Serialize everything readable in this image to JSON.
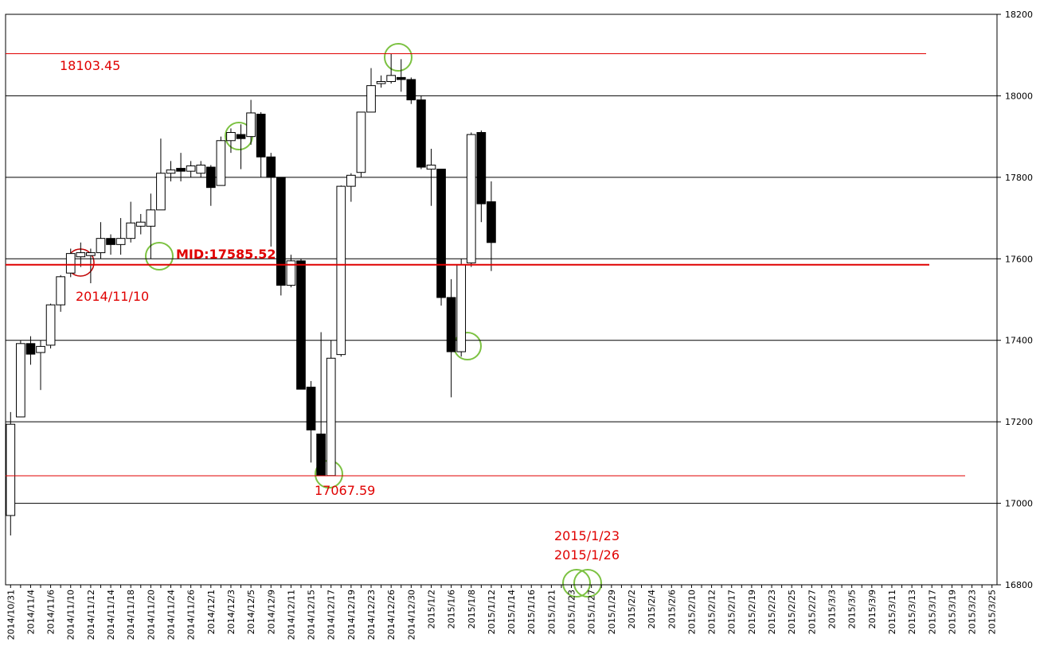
{
  "chart_data": {
    "type": "candlestick",
    "categories": [
      "2014/10/31",
      null,
      "2014/11/4",
      null,
      "2014/11/6",
      null,
      "2014/11/10",
      null,
      "2014/11/12",
      null,
      "2014/11/14",
      null,
      "2014/11/18",
      null,
      "2014/11/20",
      null,
      "2014/11/24",
      null,
      "2014/11/26",
      null,
      "2014/12/1",
      null,
      "2014/12/3",
      null,
      "2014/12/5",
      null,
      "2014/12/9",
      null,
      "2014/12/11",
      null,
      "2014/12/15",
      null,
      "2014/12/17",
      null,
      "2014/12/19",
      null,
      "2014/12/23",
      null,
      "2014/12/26",
      null,
      "2014/12/30",
      null,
      "2015/1/2",
      null,
      "2015/1/6",
      null,
      "2015/1/8",
      null,
      "2015/1/12",
      null,
      "2015/1/14",
      null,
      "2015/1/16",
      null,
      "2015/1/21",
      null,
      "2015/1/23",
      null,
      "2015/1/27",
      null,
      "2015/1/29",
      null,
      "2015/2/2",
      null,
      "2015/2/4",
      null,
      "2015/2/6",
      null,
      "2015/2/10",
      null,
      "2015/2/12",
      null,
      "2015/2/17",
      null,
      "2015/2/19",
      null,
      "2015/2/23",
      null,
      "2015/2/25",
      null,
      "2015/2/27",
      null,
      "2015/3/3",
      null,
      "2015/3/5",
      null,
      "2015/3/9",
      null,
      "2015/3/11",
      null,
      "2015/3/13",
      null,
      "2015/3/17",
      null,
      "2015/3/19",
      null,
      "2015/3/23",
      null,
      "2015/3/25"
    ],
    "open": [
      16970,
      17212,
      17392,
      17370,
      17388,
      17487,
      17565,
      17605,
      17608,
      17615,
      17650,
      17635,
      17650,
      17680,
      17680,
      17720,
      17810,
      17822,
      17815,
      17810,
      17825,
      17780,
      17890,
      17905,
      17900,
      17955,
      17850,
      17800,
      17535,
      17595,
      17285,
      17170,
      17068,
      17365,
      17778,
      17812,
      17960,
      18030,
      18035,
      18045,
      18040,
      17990,
      17820,
      17820,
      17505,
      17372,
      17590,
      17910,
      17740,
      null,
      null,
      null,
      null,
      null,
      null,
      null,
      null,
      null,
      null,
      null,
      null,
      null,
      null,
      null,
      null,
      null,
      null,
      null,
      null,
      null,
      null,
      null,
      null,
      null,
      null,
      null,
      null,
      null,
      null,
      null,
      null,
      null,
      null,
      null,
      null,
      null,
      null,
      null,
      null,
      null,
      null,
      null,
      null,
      null,
      null,
      null,
      null,
      null,
      null
    ],
    "high": [
      17224,
      17400,
      17410,
      17400,
      17490,
      17560,
      17625,
      17640,
      17625,
      17690,
      17660,
      17700,
      17740,
      17710,
      17760,
      17895,
      17840,
      17860,
      17840,
      17840,
      17830,
      17900,
      17920,
      17930,
      17990,
      17960,
      17860,
      17800,
      17610,
      17600,
      17300,
      17420,
      17400,
      17780,
      17810,
      17960,
      18068,
      18050,
      18103,
      18090,
      18045,
      18000,
      17870,
      17820,
      17550,
      17600,
      17910,
      17915,
      17790,
      null,
      null,
      null,
      null,
      null,
      null,
      null,
      null,
      null,
      null,
      null,
      null,
      null,
      null,
      null,
      null,
      null,
      null,
      null,
      null,
      null,
      null,
      null,
      null,
      null,
      null,
      null,
      null,
      null,
      null,
      null,
      null,
      null,
      null,
      null,
      null,
      null,
      null,
      null,
      null,
      null,
      null,
      null,
      null,
      null,
      null,
      null,
      null,
      null,
      null
    ],
    "low": [
      16921,
      17212,
      17340,
      17278,
      17380,
      17470,
      17555,
      17580,
      17540,
      17600,
      17610,
      17610,
      17640,
      17660,
      17600,
      17720,
      17790,
      17790,
      17800,
      17800,
      17730,
      17780,
      17860,
      17820,
      17880,
      17800,
      17630,
      17510,
      17530,
      17280,
      17100,
      17068,
      17068,
      17360,
      17740,
      17800,
      17960,
      18020,
      18030,
      18010,
      17980,
      17820,
      17730,
      17485,
      17260,
      17360,
      17580,
      17690,
      17570,
      null,
      null,
      null,
      null,
      null,
      null,
      null,
      null,
      null,
      null,
      null,
      null,
      null,
      null,
      null,
      null,
      null,
      null,
      null,
      null,
      null,
      null,
      null,
      null,
      null,
      null,
      null,
      null,
      null,
      null,
      null,
      null,
      null,
      null,
      null,
      null,
      null,
      null,
      null,
      null,
      null,
      null,
      null,
      null,
      null,
      null,
      null,
      null,
      null,
      null
    ],
    "close": [
      17194,
      17392,
      17366,
      17385,
      17487,
      17556,
      17613,
      17615,
      17615,
      17650,
      17635,
      17650,
      17688,
      17690,
      17720,
      17810,
      17818,
      17815,
      17828,
      17830,
      17775,
      17890,
      17910,
      17895,
      17958,
      17850,
      17800,
      17535,
      17595,
      17280,
      17180,
      17068,
      17356,
      17778,
      17805,
      17960,
      18025,
      18035,
      18050,
      18040,
      17990,
      17825,
      17830,
      17505,
      17372,
      17585,
      17905,
      17735,
      17640,
      null,
      null,
      null,
      null,
      null,
      null,
      null,
      null,
      null,
      null,
      null,
      null,
      null,
      null,
      null,
      null,
      null,
      null,
      null,
      null,
      null,
      null,
      null,
      null,
      null,
      null,
      null,
      null,
      null,
      null,
      null,
      null,
      null,
      null,
      null,
      null,
      null,
      null,
      null,
      null,
      null,
      null,
      null,
      null,
      null,
      null,
      null,
      null,
      null,
      null
    ],
    "up_color": "#ffffff",
    "down_color": "#000000",
    "ylim": [
      16800,
      18200
    ],
    "yticks": [
      16800,
      17000,
      17200,
      17400,
      17600,
      17800,
      18000,
      18200
    ],
    "grid": true,
    "hlines": [
      {
        "value": 18103.45,
        "color": "#e00000"
      },
      {
        "value": 17067.59,
        "color": "#e00000"
      },
      {
        "value": 17585.52,
        "label": "MID:17585.52",
        "color": "#e00000"
      }
    ],
    "annotations": [
      "2014/11/10",
      "2015/1/23",
      "2015/1/26"
    ]
  }
}
